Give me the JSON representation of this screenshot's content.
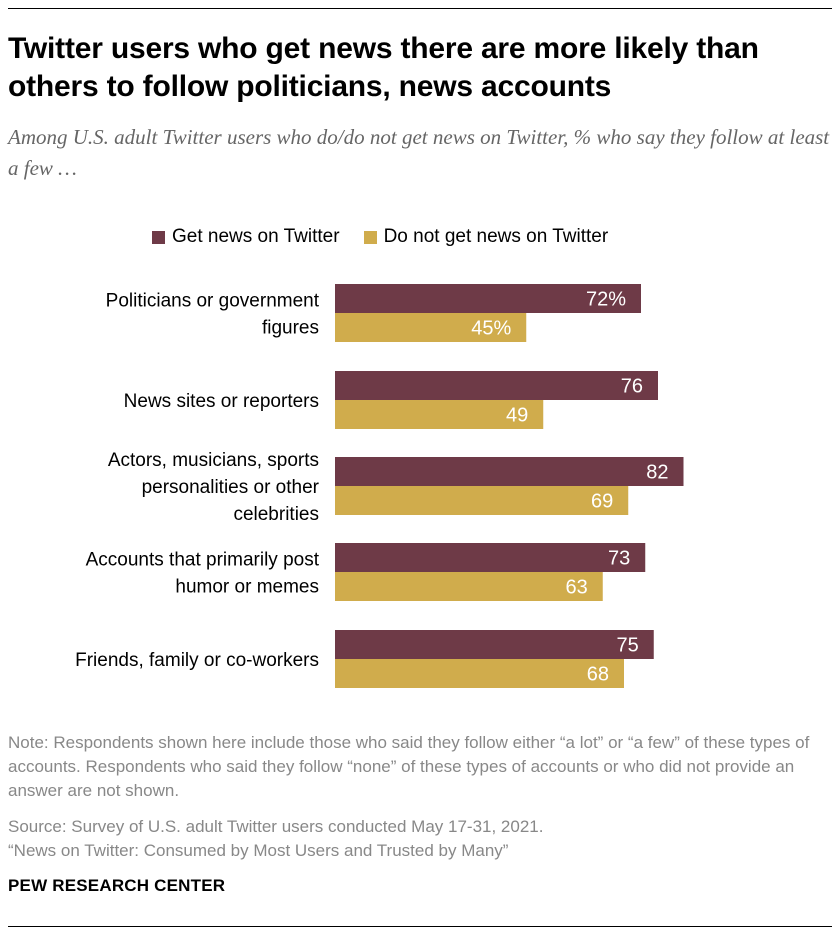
{
  "title": "Twitter users who get news there are more likely than others to follow politicians, news accounts",
  "subtitle": "Among U.S. adult Twitter users who do/do not get news on Twitter, % who say they follow at least a few …",
  "note": "Note: Respondents shown here include those who said they follow either “a lot” or “a few” of these types of accounts. Respondents who said they follow “none” of these types of accounts or who did not provide an answer are not shown.",
  "source": "Source: Survey of U.S. adult Twitter users conducted May 17-31, 2021.",
  "report": "“News on Twitter: Consumed by Most Users and Trusted by Many”",
  "logo": "PEW RESEARCH CENTER",
  "colors": {
    "get_news": "#6e3a47",
    "no_news": "#d0ac4c",
    "bar_label": "#ffffff"
  },
  "chart_data": {
    "type": "bar",
    "orientation": "horizontal",
    "categories": [
      [
        "Politicians or government",
        "figures"
      ],
      [
        "News sites or reporters"
      ],
      [
        "Actors, musicians, sports",
        "personalities or other",
        "celebrities"
      ],
      [
        "Accounts that primarily post",
        "humor or memes"
      ],
      [
        "Friends, family or co-workers"
      ]
    ],
    "series": [
      {
        "name": "Get news on Twitter",
        "values": [
          72,
          76,
          82,
          73,
          75
        ],
        "labels": [
          "72%",
          "76",
          "82",
          "73",
          "75"
        ]
      },
      {
        "name": "Do not get news on Twitter",
        "values": [
          45,
          49,
          69,
          63,
          68
        ],
        "labels": [
          "45%",
          "49",
          "69",
          "63",
          "68"
        ]
      }
    ],
    "xlim": [
      0,
      100
    ],
    "grid": false,
    "legend_position": "top"
  }
}
